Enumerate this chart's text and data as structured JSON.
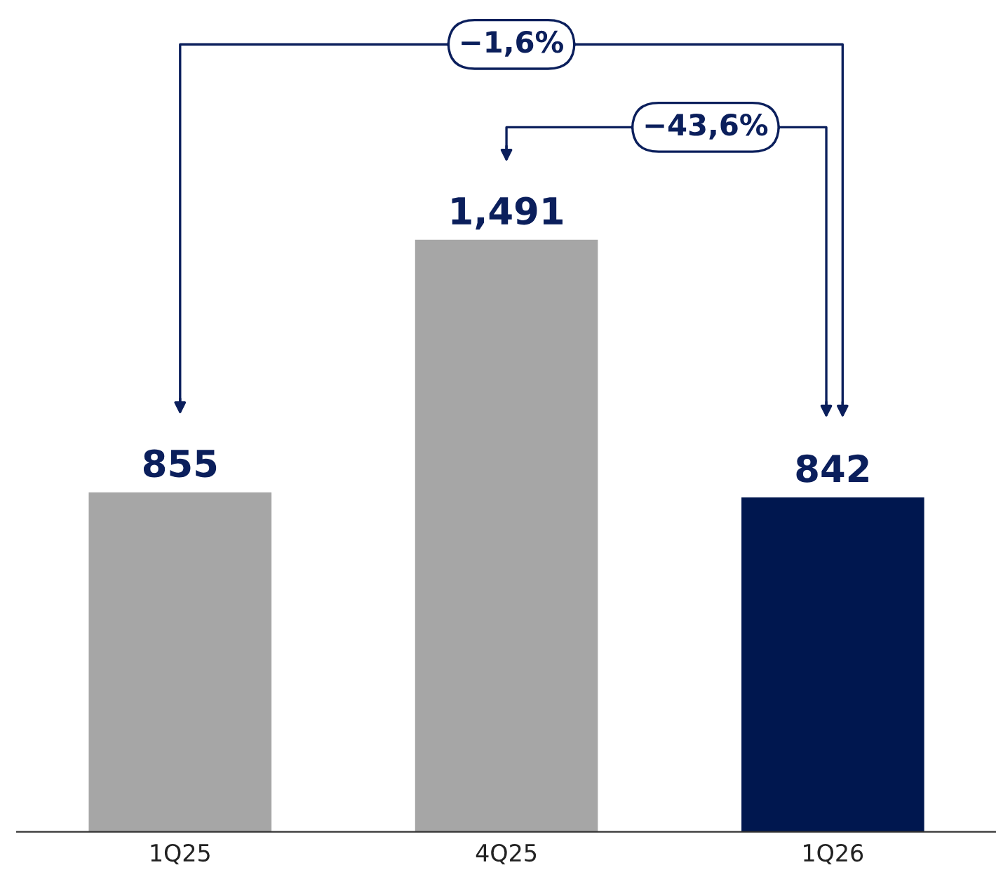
{
  "chart_data": {
    "type": "bar",
    "categories": [
      "1Q25",
      "4Q25",
      "1Q26"
    ],
    "values": [
      855,
      1491,
      842
    ],
    "colors": [
      "#a6a6a6",
      "#a6a6a6",
      "#00174f"
    ],
    "value_labels": [
      "855",
      "1,491",
      "842"
    ],
    "grid": false,
    "legend": false,
    "annotations": [
      "−1,6%",
      "−43,6%"
    ]
  }
}
